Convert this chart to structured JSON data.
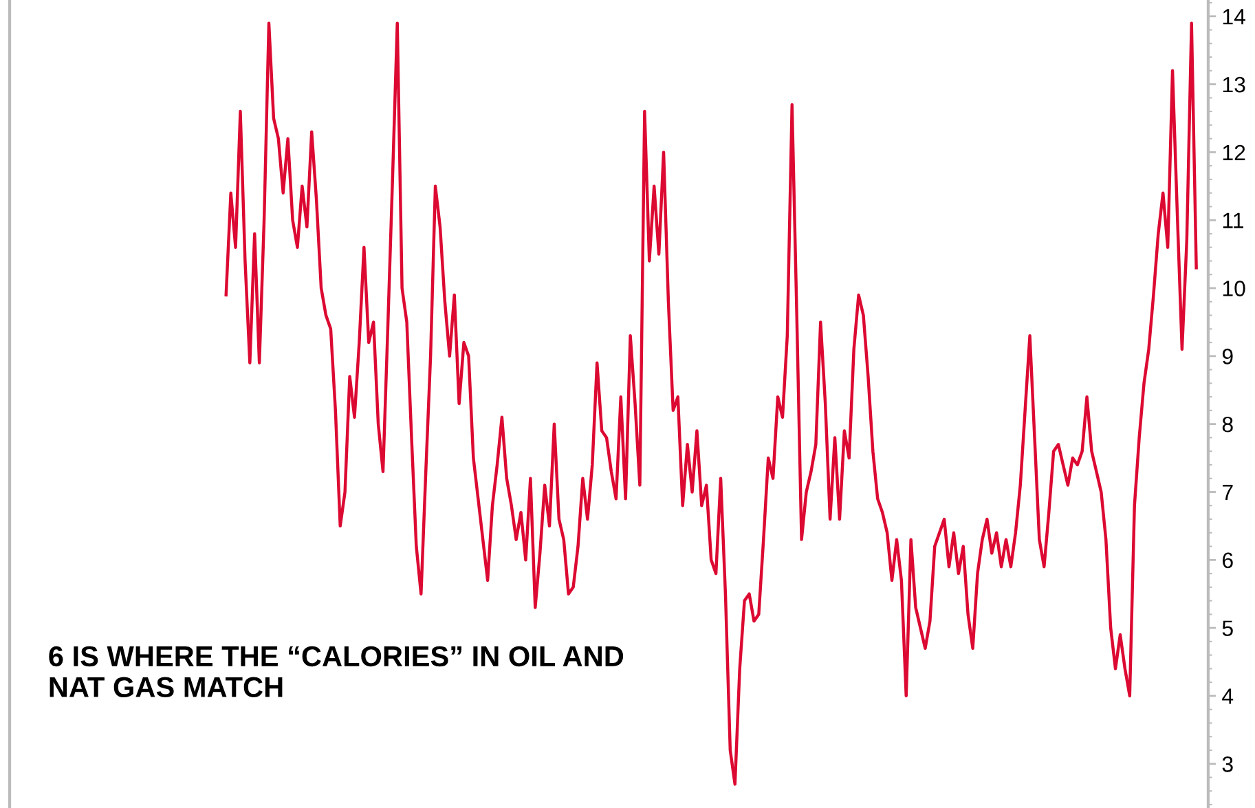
{
  "chart_data": {
    "type": "line",
    "categories": [
      null,
      null,
      null,
      null,
      null,
      null,
      null,
      null,
      null,
      null,
      null,
      null,
      null,
      null,
      null,
      null,
      null,
      null,
      null,
      null,
      null,
      null,
      null,
      null,
      null,
      null,
      null,
      null,
      null,
      null,
      null,
      null,
      null,
      null,
      null,
      null,
      null,
      null,
      null,
      null,
      null,
      null,
      null,
      null,
      null,
      null,
      null,
      null,
      null,
      null,
      null,
      null,
      null,
      null,
      null,
      null,
      null,
      null,
      null,
      null,
      null,
      null,
      null,
      null,
      null,
      null,
      null,
      null,
      null,
      null,
      null,
      null,
      null,
      null,
      null,
      null,
      null,
      null,
      null,
      null,
      null,
      null,
      null,
      null,
      null,
      null,
      null,
      null,
      null,
      null,
      null,
      null,
      null,
      null,
      null,
      null,
      null,
      null,
      null,
      null,
      null,
      null,
      null,
      null,
      null,
      null,
      null,
      null,
      null,
      null,
      null,
      null,
      null,
      null,
      null,
      null,
      null,
      null,
      null,
      null,
      null,
      null,
      null,
      null,
      null,
      null,
      null,
      null,
      null,
      null,
      null,
      null,
      null,
      null,
      null,
      null,
      null,
      null,
      null,
      null,
      null,
      null,
      null,
      null,
      null,
      null,
      null,
      null,
      null,
      null,
      null,
      null,
      null,
      null,
      null,
      null,
      null,
      null,
      null,
      null,
      null,
      null,
      null,
      null,
      null,
      null,
      null,
      null,
      null,
      null,
      null,
      null,
      null,
      null,
      null,
      null,
      null,
      null,
      null,
      null,
      null,
      null,
      null,
      null,
      null,
      null,
      null,
      null,
      null,
      null,
      null,
      null,
      null,
      null,
      null,
      null,
      null,
      null,
      null,
      null,
      null,
      null,
      null,
      null,
      null,
      null,
      null,
      null,
      null,
      null,
      null,
      null,
      null,
      null,
      null,
      null,
      null,
      null,
      null,
      null,
      null,
      null,
      null,
      null,
      null,
      null,
      null,
      null,
      null,
      null,
      null,
      null,
      null,
      null,
      null,
      null,
      null,
      null,
      null,
      null,
      null,
      null,
      null,
      null,
      null,
      null,
      null,
      null,
      null,
      null,
      null,
      null
    ],
    "series": [
      {
        "color": "#dc0a32",
        "values": [
          null,
          null,
          null,
          null,
          null,
          null,
          null,
          null,
          null,
          null,
          null,
          null,
          null,
          null,
          null,
          null,
          null,
          null,
          null,
          null,
          null,
          null,
          null,
          null,
          null,
          null,
          null,
          null,
          null,
          null,
          null,
          null,
          null,
          null,
          null,
          null,
          null,
          null,
          null,
          null,
          null,
          null,
          null,
          null,
          null,
          9.9,
          11.4,
          10.6,
          12.6,
          10.4,
          8.9,
          10.8,
          8.9,
          11.0,
          13.9,
          12.5,
          12.2,
          11.4,
          12.2,
          11.0,
          10.6,
          11.5,
          10.9,
          12.3,
          11.3,
          10.0,
          9.6,
          9.4,
          8.2,
          6.5,
          7.0,
          8.7,
          8.1,
          9.2,
          10.6,
          9.2,
          9.5,
          8.0,
          7.3,
          9.4,
          11.6,
          13.9,
          10.0,
          9.5,
          7.8,
          6.2,
          5.5,
          7.3,
          9.0,
          11.5,
          10.9,
          9.8,
          9.0,
          9.9,
          8.3,
          9.2,
          9.0,
          7.5,
          6.9,
          6.3,
          5.7,
          6.8,
          7.4,
          8.1,
          7.2,
          6.8,
          6.3,
          6.7,
          6.0,
          7.2,
          5.3,
          6.1,
          7.1,
          6.5,
          8.0,
          6.6,
          6.3,
          5.5,
          5.6,
          6.2,
          7.2,
          6.6,
          7.4,
          8.9,
          7.9,
          7.8,
          7.3,
          6.9,
          8.4,
          6.9,
          9.3,
          8.3,
          7.1,
          12.6,
          10.4,
          11.5,
          10.5,
          12.0,
          9.8,
          8.2,
          8.4,
          6.8,
          7.7,
          7.0,
          7.9,
          6.8,
          7.1,
          6.0,
          5.8,
          7.2,
          5.5,
          3.2,
          2.7,
          4.4,
          5.4,
          5.5,
          5.1,
          5.2,
          6.3,
          7.5,
          7.2,
          8.4,
          8.1,
          9.3,
          12.7,
          9.6,
          6.3,
          7.0,
          7.3,
          7.7,
          9.5,
          8.3,
          6.6,
          7.8,
          6.6,
          7.9,
          7.5,
          9.1,
          9.9,
          9.6,
          8.7,
          7.6,
          6.9,
          6.7,
          6.4,
          5.7,
          6.3,
          5.7,
          4.0,
          6.3,
          5.3,
          5.0,
          4.7,
          5.1,
          6.2,
          6.4,
          6.6,
          5.9,
          6.4,
          5.8,
          6.2,
          5.2,
          4.7,
          5.8,
          6.3,
          6.6,
          6.1,
          6.4,
          5.9,
          6.3,
          5.9,
          6.4,
          7.1,
          8.2,
          9.3,
          7.8,
          6.3,
          5.9,
          6.7,
          7.6,
          7.7,
          7.4,
          7.1,
          7.5,
          7.4,
          7.6,
          8.4,
          7.6,
          7.3,
          7.0,
          6.3,
          5.0,
          4.4,
          4.9,
          4.4,
          4.0,
          6.8,
          7.8,
          8.6,
          9.1,
          9.9,
          10.8,
          11.4,
          10.6,
          13.2,
          11.1,
          9.1,
          10.7,
          13.9,
          10.3,
          null,
          null
        ]
      }
    ],
    "ylim": [
      2.35,
      14.24
    ],
    "yticks": [
      3,
      4,
      5,
      6,
      7,
      8,
      9,
      10,
      11,
      12,
      13,
      14
    ],
    "grid": false,
    "legend": false,
    "marker": "none",
    "line_style": "solid",
    "tick_labels": "y",
    "annotations": [
      "6 IS WHERE THE “CALORIES” IN OIL AND\nNAT GAS MATCH"
    ]
  }
}
